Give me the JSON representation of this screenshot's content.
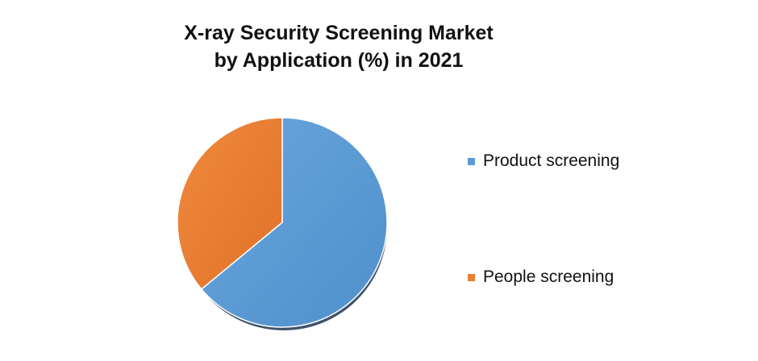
{
  "chart_data": {
    "type": "pie",
    "title": "X-ray Security Screening Market by Application (%) in 2021",
    "title_lines": [
      "X-ray Security Screening Market",
      "by Application (%) in 2021"
    ],
    "categories": [
      "Product screening",
      "People screening"
    ],
    "values": [
      64,
      36
    ],
    "colors": [
      "#5b9bd5",
      "#ed7d31"
    ],
    "legend_position": "right"
  }
}
